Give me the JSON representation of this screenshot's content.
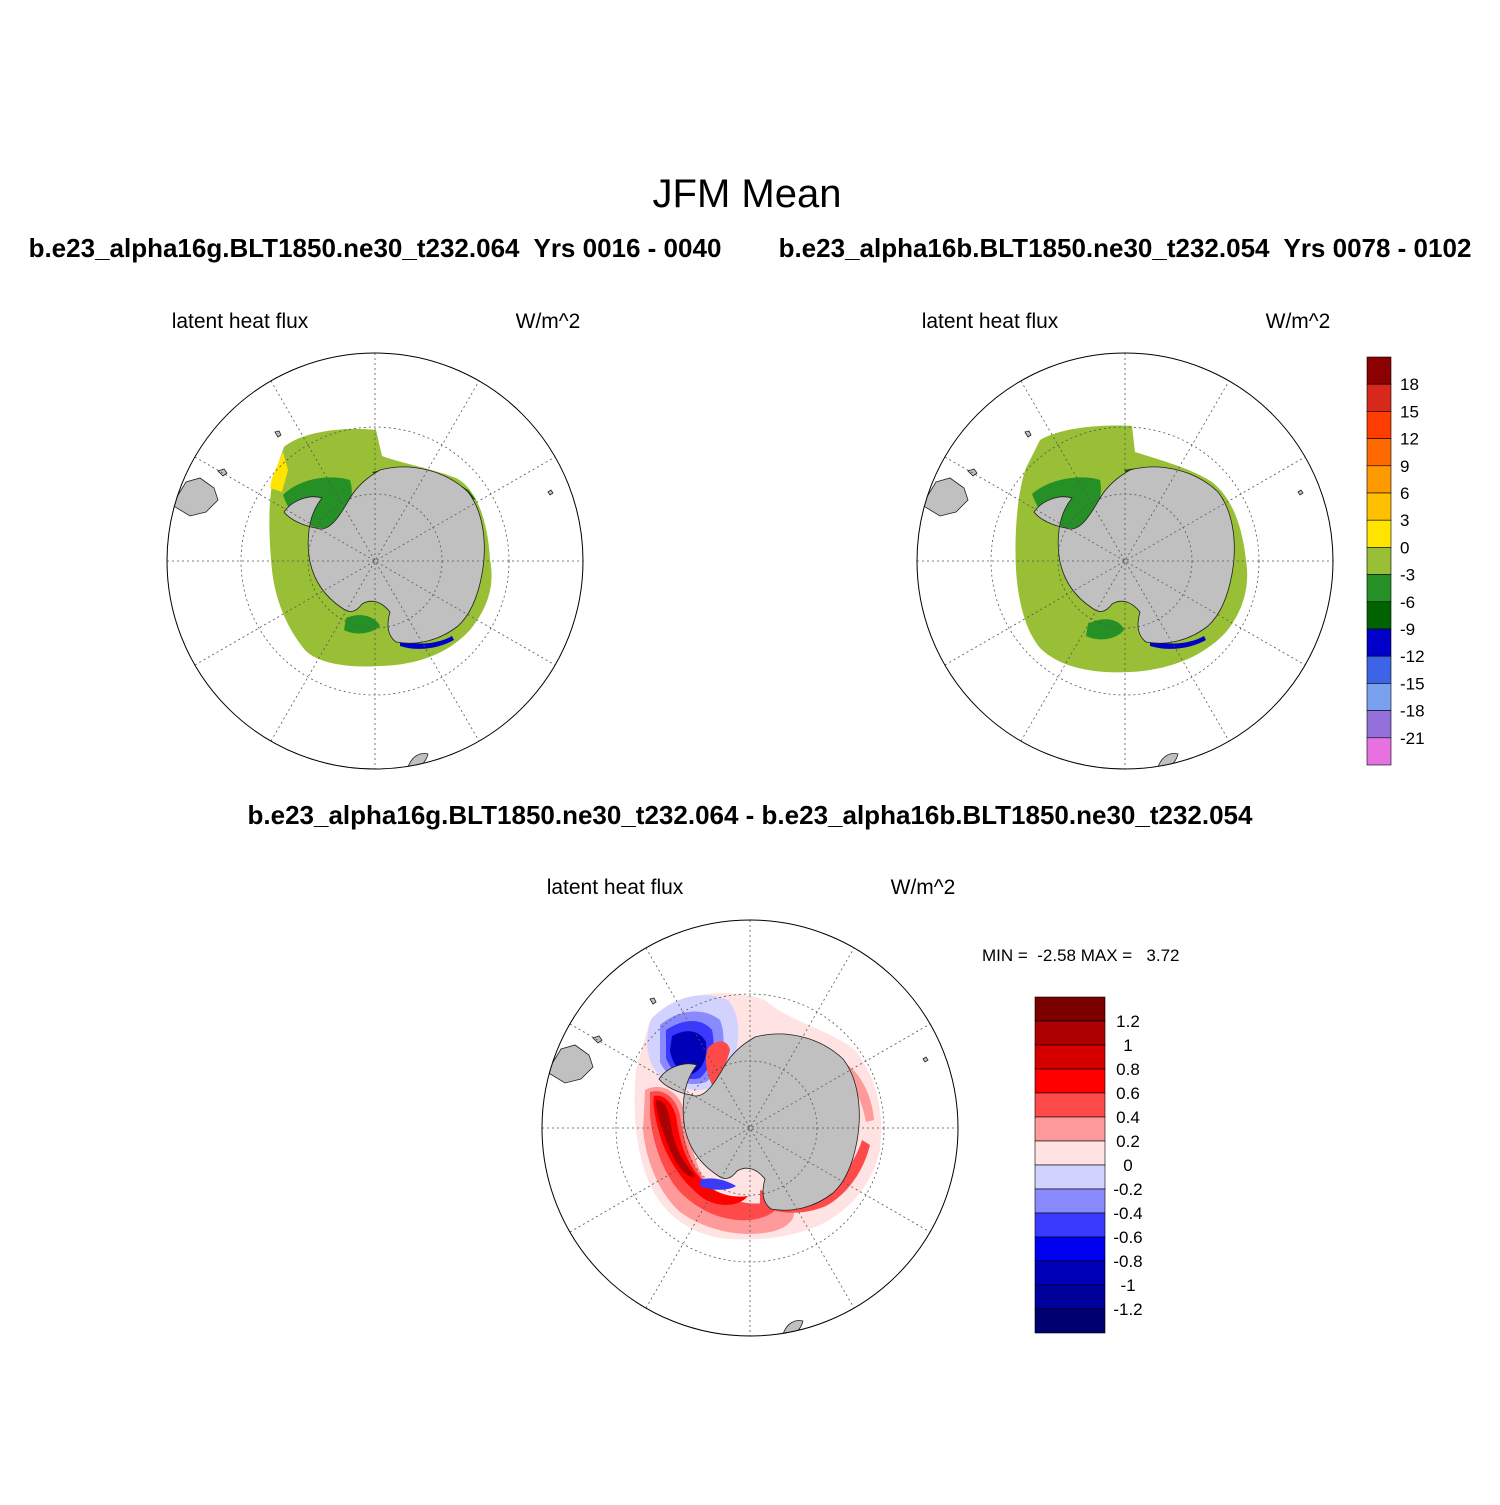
{
  "title": "JFM Mean",
  "panels": [
    {
      "case_title": "b.e23_alpha16g.BLT1850.ne30_t232.064  Yrs 0016 - 0040",
      "variable": "latent heat flux",
      "units": "W/m^2"
    },
    {
      "case_title": "b.e23_alpha16b.BLT1850.ne30_t232.054  Yrs 0078 - 0102",
      "variable": "latent heat flux",
      "units": "W/m^2"
    },
    {
      "case_title": "b.e23_alpha16g.BLT1850.ne30_t232.064 - b.e23_alpha16b.BLT1850.ne30_t232.054",
      "variable": "latent heat flux",
      "units": "W/m^2",
      "stats": "MIN =  -2.58 MAX =   3.72"
    }
  ],
  "colorbar_main": {
    "labels": [
      "18",
      "15",
      "12",
      "9",
      "6",
      "3",
      "0",
      "-3",
      "-6",
      "-9",
      "-12",
      "-15",
      "-18",
      "-21"
    ],
    "colors": [
      "#8b0000",
      "#d8281c",
      "#ff3d00",
      "#ff6a00",
      "#ff9900",
      "#ffc000",
      "#ffe400",
      "#98bf35",
      "#259026",
      "#006300",
      "#0000c8",
      "#3d64e6",
      "#7aa1f0",
      "#9370db",
      "#e771e0"
    ]
  },
  "colorbar_diff": {
    "labels": [
      "1.2",
      "1",
      "0.8",
      "0.6",
      "0.4",
      "0.2",
      "0",
      "-0.2",
      "-0.4",
      "-0.6",
      "-0.8",
      "-1",
      "-1.2"
    ],
    "colors": [
      "#7a0000",
      "#ad0000",
      "#d40000",
      "#ff0000",
      "#ff4a4a",
      "#ff9a9a",
      "#ffe2e2",
      "#d2d2ff",
      "#8a8aff",
      "#3a3aff",
      "#0000f0",
      "#0000b8",
      "#00009a",
      "#000070"
    ]
  },
  "colors": {
    "land": "#c0c0c0",
    "coast": "#202020",
    "grid": "#555555"
  }
}
